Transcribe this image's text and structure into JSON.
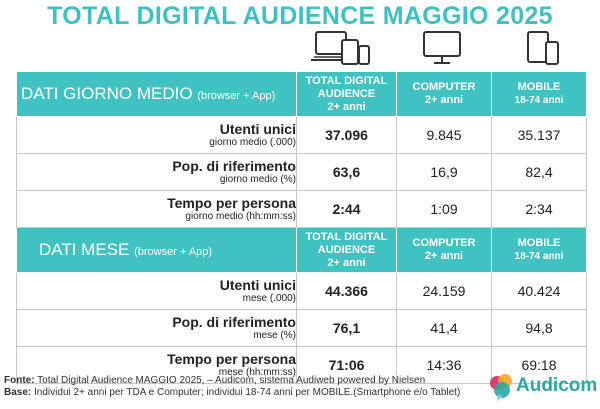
{
  "title": "TOTAL DIGITAL AUDIENCE MAGGIO 2025",
  "icons": [
    "multi-device-icon",
    "computer-icon",
    "mobile-icon"
  ],
  "sections": [
    {
      "title": "DATI GIORNO MEDIO",
      "note": "(browser + App)",
      "columns": [
        {
          "l1": "TOTAL DIGITAL",
          "l2": "AUDIENCE",
          "l3": "2+ anni"
        },
        {
          "l1": "COMPUTER",
          "l2": "2+ anni"
        },
        {
          "l1": "MOBILE",
          "l2": "18-74 anni"
        }
      ],
      "rows": [
        {
          "label": "Utenti unici",
          "sub": "giorno medio (.000)",
          "values": [
            "37.096",
            "9.845",
            "35.137"
          ]
        },
        {
          "label": "Pop. di riferimento",
          "sub": "giorno medio (%)",
          "values": [
            "63,6",
            "16,9",
            "82,4"
          ]
        },
        {
          "label": "Tempo per persona",
          "sub": "giorno medio (hh:mm:ss)",
          "values": [
            "2:44",
            "1:09",
            "2:34"
          ]
        }
      ]
    },
    {
      "title": "DATI MESE",
      "note": "(browser + App)",
      "columns": [
        {
          "l1": "TOTAL DIGITAL",
          "l2": "AUDIENCE",
          "l3": "2+ anni"
        },
        {
          "l1": "COMPUTER",
          "l2": "2+ anni"
        },
        {
          "l1": "MOBILE",
          "l2": "18-74 anni"
        }
      ],
      "rows": [
        {
          "label": "Utenti unici",
          "sub": "mese (.000)",
          "values": [
            "44.366",
            "24.159",
            "40.424"
          ]
        },
        {
          "label": "Pop. di riferimento",
          "sub": "mese (%)",
          "values": [
            "76,1",
            "41,4",
            "94,8"
          ]
        },
        {
          "label": "Tempo per persona",
          "sub": "mese (hh:mm:ss)",
          "values": [
            "71:06",
            "14:36",
            "69:18"
          ]
        }
      ]
    }
  ],
  "footer": {
    "fonte_label": "Fonte:",
    "fonte_text": "Total Digital Audience MAGGIO 2025, – Audicom, sistema Audiweb powered by Nielsen",
    "base_label": "Base:",
    "base_text": "Individui 2+ anni per TDA e Computer; individui 18-74 anni per MOBILE.(Smartphone e/o Tablet)"
  },
  "logo": {
    "text": "Audicom",
    "colors": [
      "#e23b6d",
      "#f4a62a",
      "#2aa8a4",
      "#7bc8e5"
    ]
  },
  "colors": {
    "accent": "#40c1c2",
    "title": "#3ec1c2"
  }
}
